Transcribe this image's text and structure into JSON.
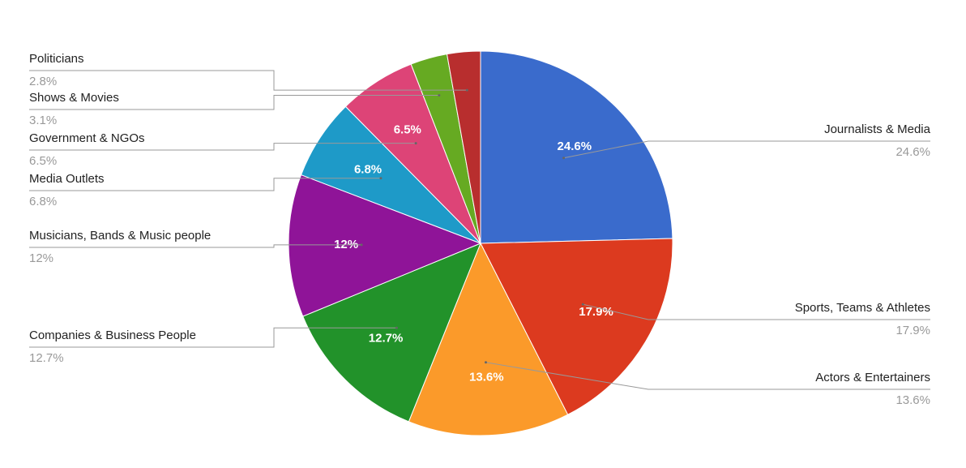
{
  "chart_data": {
    "type": "pie",
    "categories": [
      "Journalists & Media",
      "Sports, Teams & Athletes",
      "Actors & Entertainers",
      "Companies & Business People",
      "Musicians, Bands & Music people",
      "Media Outlets",
      "Government & NGOs",
      "Shows & Movies",
      "Politicians"
    ],
    "values": [
      24.6,
      17.9,
      13.6,
      12.7,
      12,
      6.8,
      6.5,
      3.1,
      2.8
    ],
    "value_labels": [
      "24.6%",
      "17.9%",
      "13.6%",
      "12.7%",
      "12%",
      "6.8%",
      "6.5%",
      "3.1%",
      "2.8%"
    ],
    "colors": [
      "#3a6bcc",
      "#dc3a1f",
      "#fb9a2a",
      "#22922a",
      "#8f1498",
      "#1e9ac8",
      "#dd4477",
      "#66aa22",
      "#b82e2e"
    ]
  }
}
